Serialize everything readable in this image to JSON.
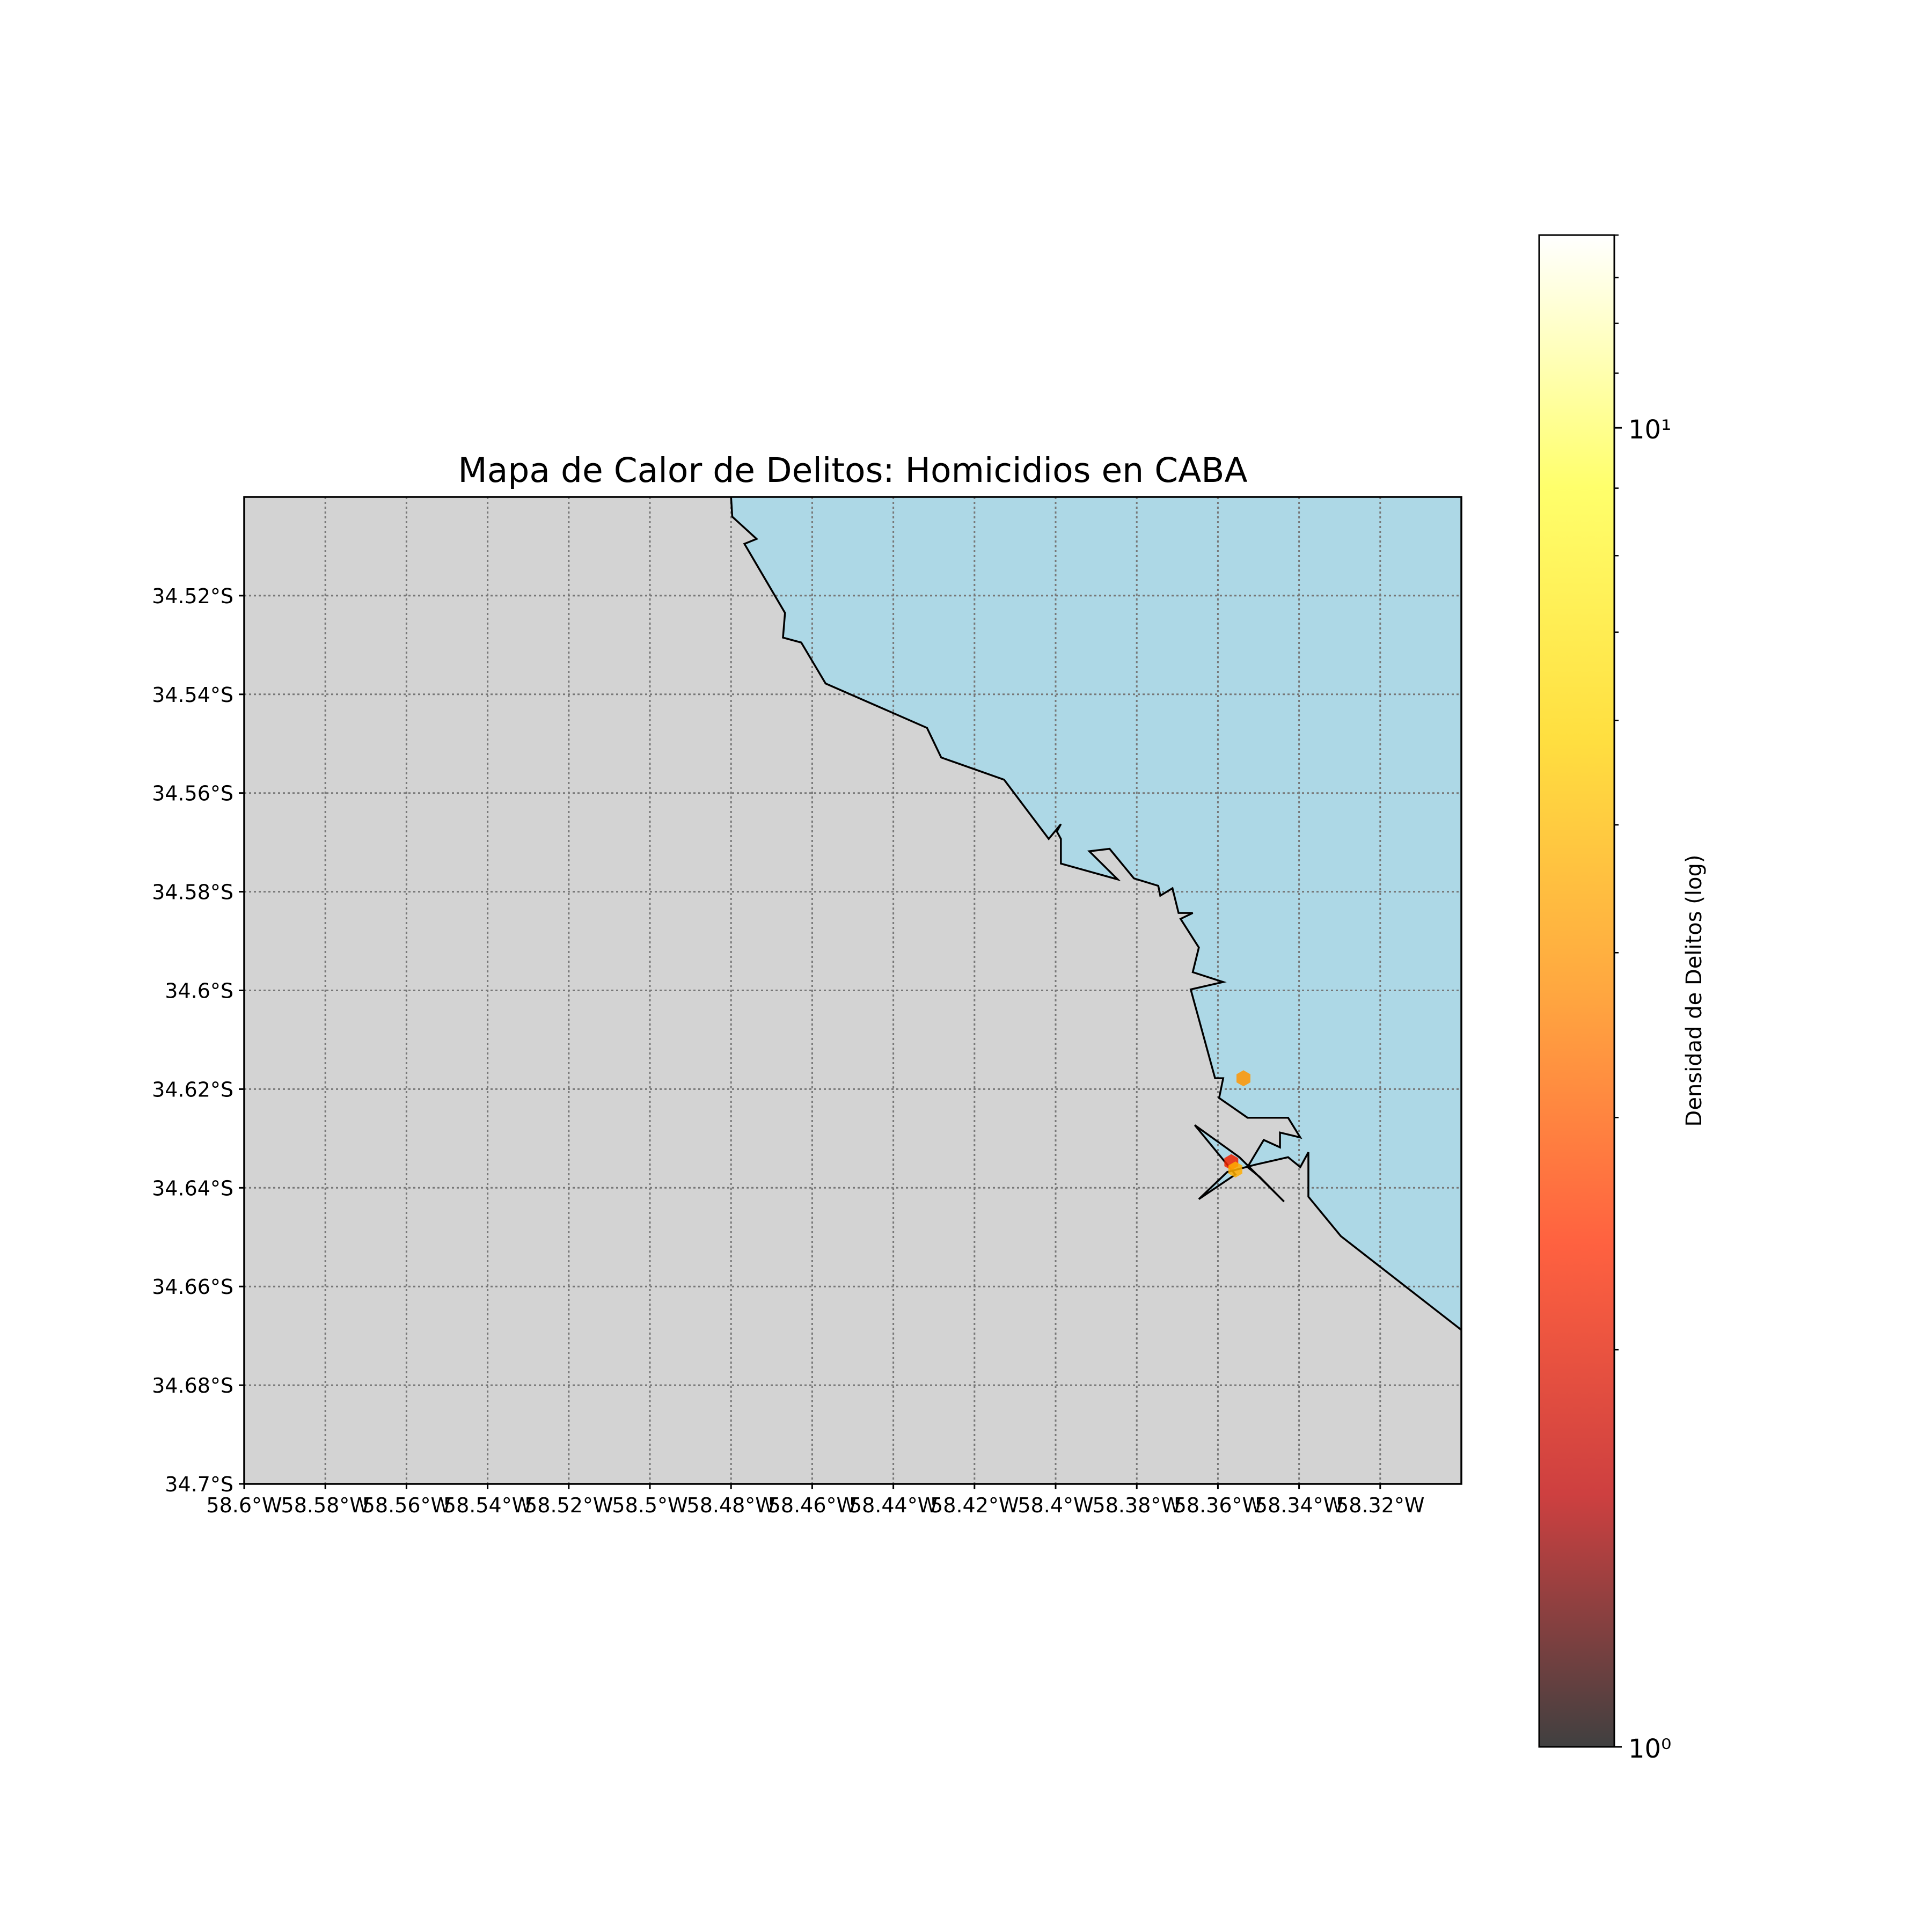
{
  "title": "Mapa de Calor de Delitos: Homicidios en CABA",
  "map": {
    "extent": {
      "lon": [
        -58.6,
        -58.3
      ],
      "lat": [
        -34.7,
        -34.5
      ]
    },
    "land_color": "#d3d3d3",
    "water_color": "#add8e6",
    "grid": true,
    "x_ticks": [
      {
        "value": -58.6,
        "label": "58.6°W"
      },
      {
        "value": -58.58,
        "label": "58.58°W"
      },
      {
        "value": -58.56,
        "label": "58.56°W"
      },
      {
        "value": -58.54,
        "label": "58.54°W"
      },
      {
        "value": -58.52,
        "label": "58.52°W"
      },
      {
        "value": -58.5,
        "label": "58.5°W"
      },
      {
        "value": -58.48,
        "label": "58.48°W"
      },
      {
        "value": -58.46,
        "label": "58.46°W"
      },
      {
        "value": -58.44,
        "label": "58.44°W"
      },
      {
        "value": -58.42,
        "label": "58.42°W"
      },
      {
        "value": -58.4,
        "label": "58.4°W"
      },
      {
        "value": -58.38,
        "label": "58.38°W"
      },
      {
        "value": -58.36,
        "label": "58.36°W"
      },
      {
        "value": -58.34,
        "label": "58.34°W"
      },
      {
        "value": -58.32,
        "label": "58.32°W"
      }
    ],
    "y_ticks": [
      {
        "value": -34.52,
        "label": "34.52°S"
      },
      {
        "value": -34.54,
        "label": "34.54°S"
      },
      {
        "value": -34.56,
        "label": "34.56°S"
      },
      {
        "value": -34.58,
        "label": "34.58°S"
      },
      {
        "value": -34.6,
        "label": "34.6°S"
      },
      {
        "value": -34.62,
        "label": "34.62°S"
      },
      {
        "value": -34.64,
        "label": "34.64°S"
      },
      {
        "value": -34.66,
        "label": "34.66°S"
      },
      {
        "value": -34.68,
        "label": "34.68°S"
      },
      {
        "value": -34.7,
        "label": "34.7°S"
      }
    ],
    "coastline": [
      [
        -58.48,
        -34.5
      ],
      [
        -58.4797,
        -34.504
      ],
      [
        -58.4737,
        -34.5085
      ],
      [
        -58.4767,
        -34.5095
      ],
      [
        -58.4667,
        -34.5235
      ],
      [
        -58.4672,
        -34.5285
      ],
      [
        -58.4627,
        -34.5295
      ],
      [
        -58.4567,
        -34.5378
      ],
      [
        -58.4317,
        -34.5468
      ],
      [
        -58.4282,
        -34.5528
      ],
      [
        -58.4127,
        -34.5573
      ],
      [
        -58.4017,
        -34.5693
      ],
      [
        -58.3987,
        -34.5663
      ],
      [
        -58.3997,
        -34.5678
      ],
      [
        -58.3987,
        -34.5693
      ],
      [
        -58.3987,
        -34.5743
      ],
      [
        -58.3847,
        -34.5775
      ],
      [
        -58.3917,
        -34.5718
      ],
      [
        -58.3867,
        -34.5713
      ],
      [
        -58.3807,
        -34.5773
      ],
      [
        -58.3747,
        -34.5788
      ],
      [
        -58.3742,
        -34.5808
      ],
      [
        -58.3712,
        -34.5793
      ],
      [
        -58.3697,
        -34.5843
      ],
      [
        -58.3662,
        -34.5843
      ],
      [
        -58.3692,
        -34.5855
      ],
      [
        -58.3647,
        -34.5913
      ],
      [
        -58.3662,
        -34.5963
      ],
      [
        -58.3587,
        -34.5983
      ],
      [
        -58.3667,
        -34.5998
      ],
      [
        -58.3607,
        -34.6178
      ],
      [
        -58.3587,
        -34.6178
      ],
      [
        -58.3597,
        -34.6218
      ],
      [
        -58.3527,
        -34.6258
      ],
      [
        -58.3427,
        -34.6258
      ],
      [
        -58.3397,
        -34.6298
      ],
      [
        -58.3447,
        -34.6288
      ],
      [
        -58.3447,
        -34.6318
      ],
      [
        -58.3487,
        -34.6303
      ],
      [
        -58.3527,
        -34.6358
      ],
      [
        -58.3497,
        -34.6378
      ],
      [
        -58.3437,
        -34.6428
      ],
      [
        -58.3547,
        -34.6338
      ],
      [
        -58.3657,
        -34.6273
      ],
      [
        -58.3557,
        -34.6373
      ],
      [
        -58.3647,
        -34.6423
      ],
      [
        -58.3577,
        -34.6368
      ],
      [
        -58.3507,
        -34.6353
      ],
      [
        -58.3427,
        -34.6338
      ],
      [
        -58.3397,
        -34.6358
      ],
      [
        -58.3377,
        -34.6328
      ],
      [
        -58.3377,
        -34.6418
      ],
      [
        -58.3297,
        -34.6498
      ],
      [
        -58.3,
        -34.6688
      ]
    ],
    "hotspots": [
      {
        "lon": -58.3537,
        "lat": -34.6178,
        "density": 4.0
      },
      {
        "lon": -58.3567,
        "lat": -34.6348,
        "density": 2.2
      },
      {
        "lon": -58.3557,
        "lat": -34.6363,
        "density": 4.6
      }
    ]
  },
  "colorbar": {
    "label": "Densidad de Delitos (log)",
    "min": 1,
    "max": 14,
    "scale": "log",
    "ticks": [
      {
        "value": 1,
        "label": "10⁰"
      },
      {
        "value": 10,
        "label": "10¹"
      }
    ],
    "stops": [
      "#000000",
      "#bd0000",
      "#ff2d00",
      "#ff8a00",
      "#ffd400",
      "#ffff3a",
      "#ffffff"
    ],
    "alpha": 0.75
  }
}
